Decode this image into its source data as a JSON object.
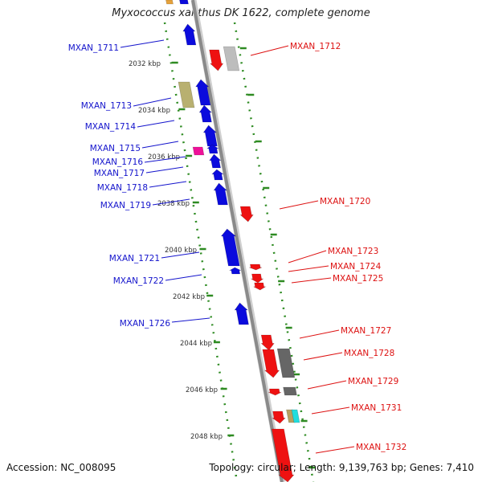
{
  "title": "Myxococcus xanthus DK 1622, complete genome",
  "accession": "Accession: NC_008095",
  "summary": "Topology: circular; Length: 9,139,763 bp; Genes: 7,410",
  "colors": {
    "backbone": "#8a8a8a",
    "tick_dots": "#2e8b22",
    "forward_gene": "#ee1111",
    "reverse_gene": "#0b0bdd",
    "forward_label": "#dd1111",
    "reverse_label": "#1414cc"
  },
  "scale_ticks": [
    "2032 kbp",
    "2034 kbp",
    "2036 kbp",
    "2038 kbp",
    "2040 kbp",
    "2042 kbp",
    "2044 kbp",
    "2046 kbp",
    "2048 kbp"
  ],
  "reverse_genes": [
    "MXAN_1711",
    "MXAN_1713",
    "MXAN_1714",
    "MXAN_1715",
    "MXAN_1716",
    "MXAN_1717",
    "MXAN_1718",
    "MXAN_1719",
    "MXAN_1721",
    "MXAN_1722",
    "MXAN_1726"
  ],
  "forward_genes": [
    "MXAN_1712",
    "MXAN_1720",
    "MXAN_1723",
    "MXAN_1724",
    "MXAN_1725",
    "MXAN_1727",
    "MXAN_1728",
    "MXAN_1729",
    "MXAN_1731",
    "MXAN_1732"
  ]
}
